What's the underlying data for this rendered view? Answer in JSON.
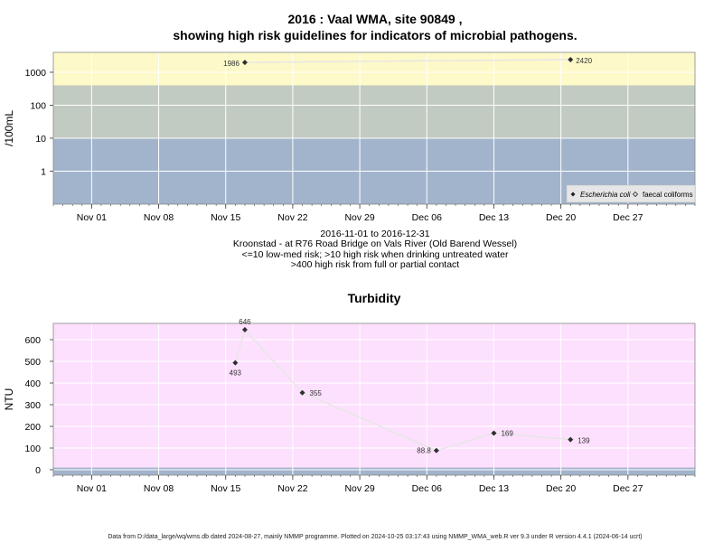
{
  "chart_data": [
    {
      "type": "line",
      "title_line1": "2016 : Vaal WMA, site 90849 ,",
      "title_line2": "showing high risk guidelines for indicators of microbial pathogens.",
      "ylabel": "/100mL",
      "y_scale": "log",
      "ylim": [
        0.1,
        4000
      ],
      "yticks": [
        1,
        10,
        100,
        1000
      ],
      "ytick_labels": [
        "1",
        "10",
        "100",
        "1000"
      ],
      "bands": [
        {
          "from": 0.1,
          "to": 10,
          "color": "#a2b4cc",
          "label": "<=10 low-med risk"
        },
        {
          "from": 10,
          "to": 400,
          "color": "#c2cbc1",
          "label": ">10 high risk when drinking untreated water"
        },
        {
          "from": 400,
          "to": 4000,
          "color": "#fef9c8",
          "label": ">400 high risk from full or partial contact"
        }
      ],
      "grid": true,
      "legend_position": "bottom-right",
      "legend": [
        {
          "name": "Escherichia coli",
          "marker": "filled-diamond"
        },
        {
          "name": "faecal coliforms",
          "marker": "open-diamond"
        }
      ],
      "series": [
        {
          "name": "Escherichia coli",
          "x": [
            "2016-11-17",
            "2016-12-21"
          ],
          "values": [
            1986,
            2420
          ],
          "labels": [
            "1986",
            "2420"
          ]
        }
      ],
      "caption": [
        "2016-11-01 to 2016-12-31",
        "Kroonstad - at R76 Road Bridge on Vals River (Old Barend Wessel)",
        "<=10 low-med risk; >10 high risk when drinking untreated water",
        ">400 high risk from full or partial contact"
      ]
    },
    {
      "type": "line",
      "title": "Turbidity",
      "ylabel": "NTU",
      "ylim": [
        -25,
        675
      ],
      "yticks": [
        0,
        100,
        200,
        300,
        400,
        500,
        600
      ],
      "ytick_labels": [
        "0",
        "100",
        "200",
        "300",
        "400",
        "500",
        "600"
      ],
      "grid": true,
      "series": [
        {
          "name": "Turbidity",
          "x": [
            "2016-11-16",
            "2016-11-17",
            "2016-11-23",
            "2016-12-07",
            "2016-12-13",
            "2016-12-21"
          ],
          "values": [
            493,
            646,
            355,
            88.8,
            169,
            139
          ],
          "labels": [
            "493",
            "646",
            "355",
            "88.8",
            "169",
            "139"
          ]
        }
      ]
    }
  ],
  "x_axis": {
    "range": [
      "2016-10-28",
      "2017-01-03"
    ],
    "ticks": [
      "2016-11-01",
      "2016-11-08",
      "2016-11-15",
      "2016-11-22",
      "2016-11-29",
      "2016-12-06",
      "2016-12-13",
      "2016-12-20",
      "2016-12-27"
    ],
    "tick_labels": [
      "Nov 01",
      "Nov 08",
      "Nov 15",
      "Nov 22",
      "Nov 29",
      "Dec 06",
      "Dec 13",
      "Dec 20",
      "Dec 27"
    ]
  },
  "footer": "Data from D:/data_large/wq/wms.db dated 2024-08-27, mainly NMMP programme. Plotted on 2024-10-25 03:17:43 using NMMP_WMA_web.R ver 9.3 under R version 4.4.1 (2024-06-14 ucrt)",
  "colors": {
    "band_low": "#a2b4cc",
    "band_mid": "#c2cbc1",
    "band_high": "#fef9c8",
    "turbidity_bg": "#fde0fd",
    "turbidity_base": "#a2b4cc",
    "line": "#e6e6e6",
    "marker": "#333333"
  }
}
